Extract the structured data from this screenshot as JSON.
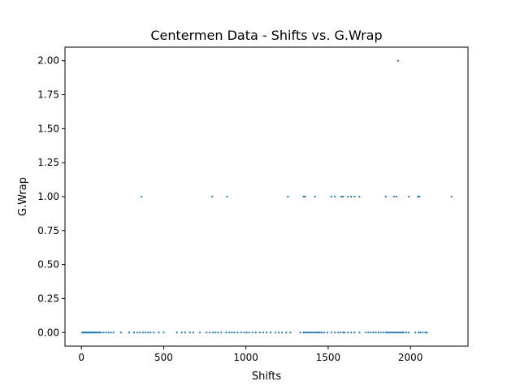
{
  "chart_data": {
    "type": "scatter",
    "title": "Centermen Data - Shifts vs. G.Wrap",
    "xlabel": "Shifts",
    "ylabel": "G.Wrap",
    "xlim": [
      -100,
      2350
    ],
    "ylim": [
      -0.1,
      2.1
    ],
    "xticks": [
      0,
      500,
      1000,
      1500,
      2000
    ],
    "yticks": [
      0.0,
      0.25,
      0.5,
      0.75,
      1.0,
      1.25,
      1.5,
      1.75,
      2.0
    ],
    "xtick_labels": [
      "0",
      "500",
      "1000",
      "1500",
      "2000"
    ],
    "ytick_labels": [
      "0.00",
      "0.25",
      "0.50",
      "0.75",
      "1.00",
      "1.25",
      "1.50",
      "1.75",
      "2.00"
    ],
    "grid": false,
    "marker_color": "#1f77b4",
    "series": [
      {
        "points": [
          [
            5,
            0
          ],
          [
            12,
            0
          ],
          [
            18,
            0
          ],
          [
            24,
            0
          ],
          [
            30,
            0
          ],
          [
            36,
            0
          ],
          [
            42,
            0
          ],
          [
            48,
            0
          ],
          [
            55,
            0
          ],
          [
            62,
            0
          ],
          [
            68,
            0
          ],
          [
            75,
            0
          ],
          [
            82,
            0
          ],
          [
            88,
            0
          ],
          [
            95,
            0
          ],
          [
            105,
            0
          ],
          [
            112,
            0
          ],
          [
            120,
            0
          ],
          [
            135,
            0
          ],
          [
            150,
            0
          ],
          [
            165,
            0
          ],
          [
            180,
            0
          ],
          [
            195,
            0
          ],
          [
            240,
            0
          ],
          [
            290,
            0
          ],
          [
            320,
            0
          ],
          [
            340,
            0
          ],
          [
            355,
            0
          ],
          [
            375,
            0
          ],
          [
            390,
            0
          ],
          [
            405,
            0
          ],
          [
            420,
            0
          ],
          [
            440,
            0
          ],
          [
            470,
            0
          ],
          [
            500,
            0
          ],
          [
            580,
            0
          ],
          [
            610,
            0
          ],
          [
            630,
            0
          ],
          [
            660,
            0
          ],
          [
            680,
            0
          ],
          [
            720,
            0
          ],
          [
            760,
            0
          ],
          [
            780,
            0
          ],
          [
            800,
            0
          ],
          [
            815,
            0
          ],
          [
            830,
            0
          ],
          [
            850,
            0
          ],
          [
            880,
            0
          ],
          [
            900,
            0
          ],
          [
            915,
            0
          ],
          [
            930,
            0
          ],
          [
            950,
            0
          ],
          [
            970,
            0
          ],
          [
            990,
            0
          ],
          [
            1005,
            0
          ],
          [
            1020,
            0
          ],
          [
            1040,
            0
          ],
          [
            1060,
            0
          ],
          [
            1085,
            0
          ],
          [
            1105,
            0
          ],
          [
            1125,
            0
          ],
          [
            1150,
            0
          ],
          [
            1180,
            0
          ],
          [
            1200,
            0
          ],
          [
            1220,
            0
          ],
          [
            1245,
            0
          ],
          [
            1270,
            0
          ],
          [
            1330,
            0
          ],
          [
            1350,
            0
          ],
          [
            1360,
            0
          ],
          [
            1370,
            0
          ],
          [
            1380,
            0
          ],
          [
            1390,
            0
          ],
          [
            1400,
            0
          ],
          [
            1410,
            0
          ],
          [
            1420,
            0
          ],
          [
            1430,
            0
          ],
          [
            1440,
            0
          ],
          [
            1450,
            0
          ],
          [
            1460,
            0
          ],
          [
            1475,
            0
          ],
          [
            1495,
            0
          ],
          [
            1520,
            0
          ],
          [
            1540,
            0
          ],
          [
            1560,
            0
          ],
          [
            1575,
            0
          ],
          [
            1590,
            0
          ],
          [
            1600,
            0
          ],
          [
            1620,
            0
          ],
          [
            1640,
            0
          ],
          [
            1660,
            0
          ],
          [
            1690,
            0
          ],
          [
            1730,
            0
          ],
          [
            1745,
            0
          ],
          [
            1760,
            0
          ],
          [
            1775,
            0
          ],
          [
            1790,
            0
          ],
          [
            1805,
            0
          ],
          [
            1820,
            0
          ],
          [
            1835,
            0
          ],
          [
            1850,
            0
          ],
          [
            1860,
            0
          ],
          [
            1870,
            0
          ],
          [
            1880,
            0
          ],
          [
            1890,
            0
          ],
          [
            1900,
            0
          ],
          [
            1910,
            0
          ],
          [
            1920,
            0
          ],
          [
            1930,
            0
          ],
          [
            1940,
            0
          ],
          [
            1950,
            0
          ],
          [
            1960,
            0
          ],
          [
            1975,
            0
          ],
          [
            1990,
            0
          ],
          [
            2030,
            0
          ],
          [
            2050,
            0
          ],
          [
            2060,
            0
          ],
          [
            2075,
            0
          ],
          [
            2090,
            0
          ],
          [
            2100,
            0
          ],
          [
            365,
            1
          ],
          [
            795,
            1
          ],
          [
            885,
            1
          ],
          [
            1255,
            1
          ],
          [
            1350,
            1
          ],
          [
            1360,
            1
          ],
          [
            1420,
            1
          ],
          [
            1520,
            1
          ],
          [
            1540,
            1
          ],
          [
            1580,
            1
          ],
          [
            1590,
            1
          ],
          [
            1620,
            1
          ],
          [
            1640,
            1
          ],
          [
            1660,
            1
          ],
          [
            1690,
            1
          ],
          [
            1850,
            1
          ],
          [
            1900,
            1
          ],
          [
            1915,
            1
          ],
          [
            1990,
            1
          ],
          [
            2045,
            1
          ],
          [
            2055,
            1
          ],
          [
            2250,
            1
          ],
          [
            1925,
            2
          ]
        ]
      }
    ]
  }
}
